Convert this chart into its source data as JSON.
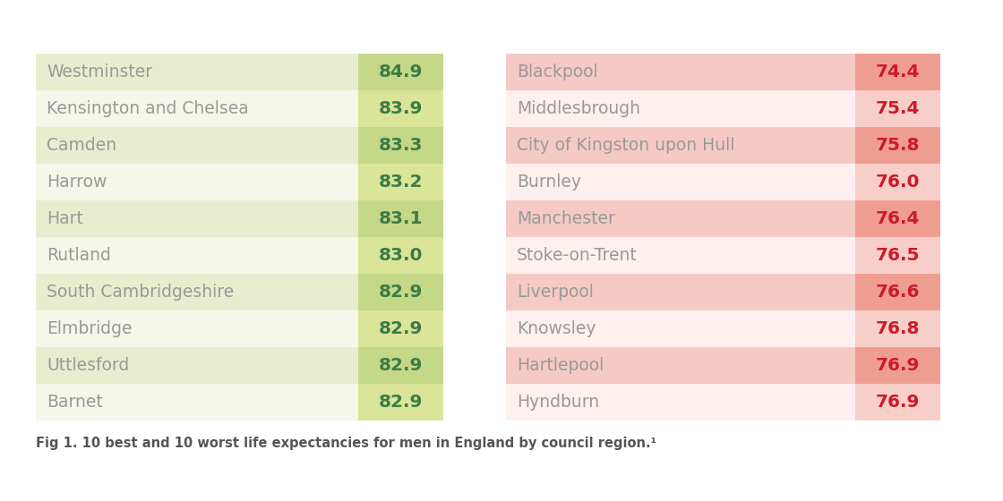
{
  "best_regions": [
    "Westminster",
    "Kensington and Chelsea",
    "Camden",
    "Harrow",
    "Hart",
    "Rutland",
    "South Cambridgeshire",
    "Elmbridge",
    "Uttlesford",
    "Barnet"
  ],
  "best_values": [
    84.9,
    83.9,
    83.3,
    83.2,
    83.1,
    83.0,
    82.9,
    82.9,
    82.9,
    82.9
  ],
  "worst_regions": [
    "Blackpool",
    "Middlesbrough",
    "City of Kingston upon Hull",
    "Burnley",
    "Manchester",
    "Stoke-on-Trent",
    "Liverpool",
    "Knowsley",
    "Hartlepool",
    "Hyndburn"
  ],
  "worst_values": [
    74.4,
    75.4,
    75.8,
    76.0,
    76.4,
    76.5,
    76.6,
    76.8,
    76.9,
    76.9
  ],
  "bg_color": "#ffffff",
  "best_row_bg_shaded": "#e8edcf",
  "best_row_bg_plain": "#f5f7eb",
  "best_value_bg_shaded": "#c5d888",
  "best_value_bg_plain": "#dae59a",
  "worst_row_bg_shaded": "#f5cac4",
  "worst_row_bg_plain": "#fdf0ee",
  "worst_value_bg_shaded": "#ef9d90",
  "worst_value_bg_plain": "#f8cec8",
  "best_text_color": "#3a7d44",
  "worst_text_color": "#cc1a2a",
  "region_text_color": "#999999",
  "caption": "Fig 1. 10 best and 10 worst life expectancies for men in England by council region.¹",
  "caption_color": "#555555"
}
